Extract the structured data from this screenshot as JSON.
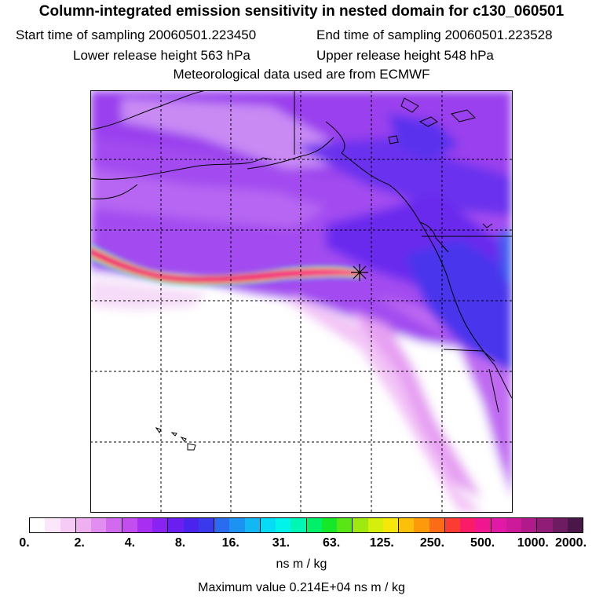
{
  "header": {
    "title": "Column-integrated emission sensitivity in nested domain for c130_060501",
    "start_label": "Start time of sampling 20060501.223450",
    "end_label": "End time of sampling 20060501.223528",
    "lower_label": "Lower release height  563 hPa",
    "upper_label": "Upper release height  548 hPa",
    "met_label": "Meteorological data used are from ECMWF"
  },
  "chart_data": {
    "type": "heatmap",
    "title": "Column-integrated emission sensitivity in nested domain for c130_060501",
    "colorbar": {
      "ticks": [
        "0.",
        "2.",
        "4.",
        "8.",
        "16.",
        "31.",
        "63.",
        "125.",
        "250.",
        "500.",
        "1000.",
        "2000."
      ],
      "unit": "ns m / kg",
      "colors": [
        "#ffffff",
        "#fbe6fb",
        "#f6ccf7",
        "#efb0f2",
        "#e28ef0",
        "#d26af0",
        "#c24ef0",
        "#a82ef2",
        "#8a22f2",
        "#6a1ef0",
        "#4a24ec",
        "#3a3aec",
        "#2a6cf0",
        "#1c92f2",
        "#12b8f4",
        "#06dcf6",
        "#00f4ea",
        "#00f6b4",
        "#00f06a",
        "#14e828",
        "#5ae614",
        "#9eea10",
        "#d6ee0c",
        "#f6e60a",
        "#fcc00a",
        "#fc9a0c",
        "#fc6c16",
        "#fc3c32",
        "#fa1c66",
        "#f01690",
        "#e01aa6",
        "#cc1a9a",
        "#b01a8a",
        "#901c78",
        "#6e1c62",
        "#4a1848"
      ]
    },
    "max_value": "Maximum value  0.214E+04 ns m / kg"
  },
  "colors": {
    "background": "#ffffff",
    "plume": "#f51a7a",
    "plume_core": "#ff4a9a"
  },
  "icons": {
    "release_point": "release-point-marker-icon"
  }
}
